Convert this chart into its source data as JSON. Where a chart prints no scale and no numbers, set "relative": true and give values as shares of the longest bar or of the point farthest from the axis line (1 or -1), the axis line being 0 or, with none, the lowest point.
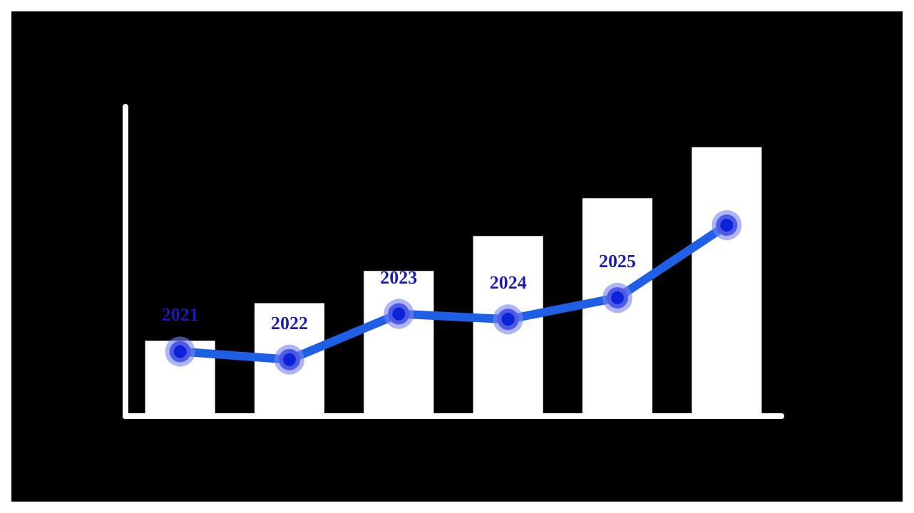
{
  "chart_data": {
    "type": "bar",
    "relative": true,
    "categories": [
      "2021",
      "2022",
      "2023",
      "2024",
      "2025",
      null
    ],
    "series": [
      {
        "color": "#ffffff",
        "values": [
          0.28,
          0.42,
          0.54,
          0.67,
          0.81,
          1
        ]
      },
      {
        "type": "line",
        "color": "#1f5fe6",
        "values": [
          0.24,
          0.21,
          0.38,
          0.36,
          0.44,
          0.71
        ]
      }
    ],
    "marker": "circle",
    "line_style": "solid",
    "grid": false
  }
}
